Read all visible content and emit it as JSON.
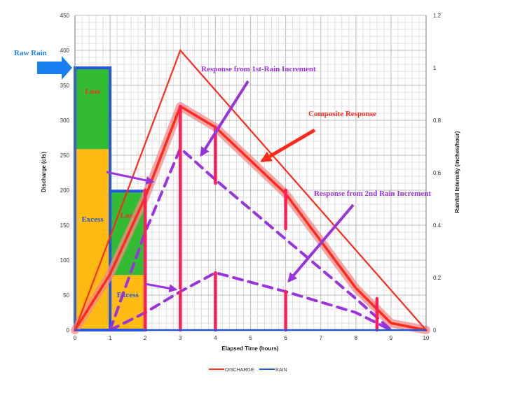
{
  "chart_data": {
    "type": "line",
    "xlabel": "Elapsed Time (hours)",
    "ylabel": "Discharge (cfs)",
    "y2label": "Rainfall Intensity (inches/hour)",
    "xlim": [
      0,
      10
    ],
    "ylim": [
      0,
      450
    ],
    "y2lim": [
      0,
      1.2
    ],
    "grid": true,
    "x_ticks": [
      "0",
      "1",
      "2",
      "3",
      "4",
      "5",
      "6",
      "7",
      "8",
      "9",
      "10"
    ],
    "y_ticks": [
      "0",
      "50",
      "100",
      "150",
      "200",
      "250",
      "300",
      "350",
      "400",
      "450"
    ],
    "y2_ticks": [
      "0",
      "0.2",
      "0.4",
      "0.6",
      "0.8",
      "1",
      "1.2"
    ],
    "legend": [
      {
        "name": "DISCHARGE",
        "color": "#ff2a1a"
      },
      {
        "name": "RAIN",
        "color": "#2255e0"
      }
    ],
    "rain_bars": [
      {
        "x0": 0,
        "x1": 1,
        "intensity": 1.0,
        "excess": 0.69,
        "loss_label": "Loss",
        "excess_label": "Excess"
      },
      {
        "x0": 1,
        "x1": 2,
        "intensity": 0.53,
        "excess": 0.21,
        "loss_label": "Loss",
        "excess_label": "Excess"
      }
    ],
    "series": [
      {
        "name": "DISCHARGE",
        "x": [
          0,
          3,
          10
        ],
        "y": [
          0,
          400,
          0
        ],
        "color": "#ff2a1a"
      }
    ],
    "composite_response": {
      "x": [
        0,
        1,
        2,
        3,
        4,
        6,
        8,
        9,
        10
      ],
      "y": [
        0,
        80,
        190,
        320,
        290,
        195,
        60,
        10,
        0
      ]
    },
    "response_first_increment": {
      "x": [
        1,
        2,
        3,
        4,
        6,
        8,
        9
      ],
      "y": [
        0,
        140,
        260,
        215,
        130,
        45,
        0
      ]
    },
    "response_second_increment": {
      "x": [
        1,
        2,
        3,
        4,
        6,
        8,
        9
      ],
      "y": [
        0,
        25,
        55,
        82,
        55,
        25,
        0
      ]
    },
    "ordinates": [
      {
        "x": 2,
        "y0": 0,
        "y1": 200
      },
      {
        "x": 3,
        "y0": 60,
        "y1": 320
      },
      {
        "x": 3,
        "y0": 0,
        "y1": 55
      },
      {
        "x": 4,
        "y0": 210,
        "y1": 290
      },
      {
        "x": 4,
        "y0": 0,
        "y1": 82
      },
      {
        "x": 6,
        "y0": 145,
        "y1": 200
      },
      {
        "x": 6,
        "y0": 0,
        "y1": 55
      },
      {
        "x": 8.6,
        "y0": 0,
        "y1": 45
      }
    ],
    "annotations": {
      "raw_rain": "Raw Rain",
      "first_response": "Response from 1st-Rain Increment",
      "composite": "Composite Response",
      "second_response": "Response from 2nd Rain Increment"
    },
    "colors": {
      "discharge": "#ff2a1a",
      "rain_outline": "#2255e0",
      "loss": "#33bb33",
      "excess": "#ffbb11",
      "response": "#9933dd",
      "ordinate": "#ff1f55",
      "composite_halo": "#f08a8a",
      "raw_rain_arrow": "#1a7ff0"
    }
  }
}
